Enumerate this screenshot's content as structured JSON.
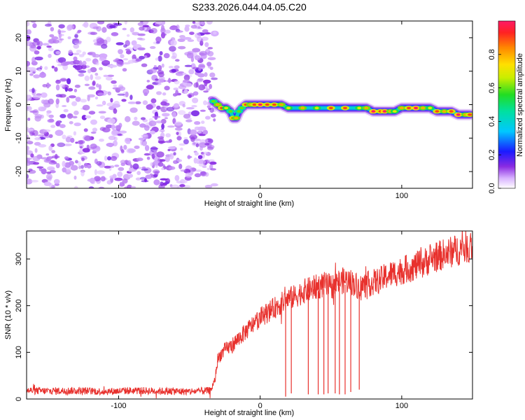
{
  "figure": {
    "title": "S233.2026.044.04.05.C20"
  },
  "colors": {
    "snr_line": "#e8312d",
    "axis": "#000000",
    "noise_purple": "#7a2be0"
  },
  "chart_data": [
    {
      "type": "heatmap",
      "name": "spectrogram",
      "xlabel": "Height of straight line (km)",
      "ylabel": "Frequency (Hz)",
      "xlim": [
        -165,
        150
      ],
      "ylim": [
        -25,
        25
      ],
      "xticks": [
        -100,
        0,
        100
      ],
      "yticks": [
        -20,
        -10,
        0,
        10,
        20
      ],
      "xtick_labels": [
        "-100",
        "0",
        "100"
      ],
      "ytick_labels": [
        "-20",
        "-10",
        "0",
        "10",
        "20"
      ],
      "noise_region_x": [
        -165,
        -32
      ],
      "signal_track": {
        "x": [
          -33,
          -30,
          -27,
          -24,
          -21,
          -19,
          -17,
          -15,
          -13,
          -10,
          -7,
          -4,
          0,
          5,
          10,
          15,
          20,
          30,
          40,
          50,
          60,
          70,
          75,
          80,
          85,
          88,
          92,
          95,
          100,
          105,
          110,
          115,
          120,
          125,
          130,
          135,
          140,
          145,
          148
        ],
        "freq": [
          1,
          0,
          -1,
          -1,
          -2,
          -4,
          -4,
          -2,
          -1,
          0,
          0,
          0,
          0,
          0,
          0,
          0,
          -1,
          -1,
          -1,
          -1,
          -1,
          -1,
          -1,
          -2,
          -2,
          -2,
          -2,
          -2,
          -1,
          -1,
          -1,
          -1,
          -1,
          -2,
          -2,
          -2,
          -3,
          -3,
          -3
        ],
        "amplitude": [
          0.6,
          0.8,
          0.9,
          0.7,
          0.6,
          0.9,
          0.8,
          0.6,
          0.6,
          0.9,
          0.8,
          0.9,
          1.0,
          0.9,
          0.9,
          0.8,
          0.7,
          0.8,
          0.7,
          0.9,
          0.9,
          0.7,
          0.8,
          1.0,
          0.9,
          1.0,
          0.8,
          0.7,
          0.8,
          0.9,
          1.0,
          0.8,
          0.7,
          0.9,
          0.8,
          0.9,
          1.0,
          0.8,
          0.9
        ]
      },
      "colorbar": {
        "label": "Normalized spectral amplitude",
        "range": [
          0,
          1
        ],
        "ticks": [
          0.0,
          0.2,
          0.4,
          0.6,
          0.8
        ],
        "tick_labels": [
          "0.0",
          "0.2",
          "0.4",
          "0.6",
          "0.8"
        ]
      }
    },
    {
      "type": "line",
      "name": "snr",
      "xlabel": "Height of straight line (km)",
      "ylabel": "SNR (10 * v/v)",
      "xlim": [
        -165,
        150
      ],
      "ylim": [
        0,
        360
      ],
      "xticks": [
        -100,
        0,
        100
      ],
      "yticks": [
        0,
        100,
        200,
        300
      ],
      "xtick_labels": [
        "-100",
        "0",
        "100"
      ],
      "ytick_labels": [
        "0",
        "100",
        "200",
        "300"
      ],
      "series": [
        {
          "name": "SNR",
          "x": [
            -165,
            -150,
            -130,
            -110,
            -90,
            -70,
            -50,
            -35,
            -32,
            -30,
            -28,
            -25,
            -20,
            -15,
            -10,
            -5,
            0,
            5,
            10,
            15,
            20,
            25,
            30,
            35,
            40,
            45,
            50,
            55,
            60,
            65,
            70,
            75,
            80,
            85,
            90,
            95,
            100,
            105,
            110,
            115,
            120,
            125,
            130,
            135,
            140,
            145,
            150
          ],
          "values": [
            18,
            17,
            18,
            16,
            18,
            17,
            16,
            18,
            40,
            85,
            95,
            105,
            115,
            130,
            145,
            160,
            175,
            185,
            195,
            205,
            215,
            220,
            230,
            235,
            240,
            245,
            240,
            250,
            255,
            250,
            240,
            245,
            250,
            255,
            265,
            270,
            275,
            280,
            285,
            290,
            300,
            305,
            310,
            315,
            320,
            325,
            330
          ],
          "dropouts": {
            "x": [
              18,
              22,
              34,
              41,
              45,
              48,
              53,
              56,
              60,
              64,
              70
            ],
            "min": [
              5,
              12,
              10,
              10,
              10,
              12,
              12,
              10,
              10,
              15,
              20
            ]
          }
        }
      ]
    }
  ]
}
